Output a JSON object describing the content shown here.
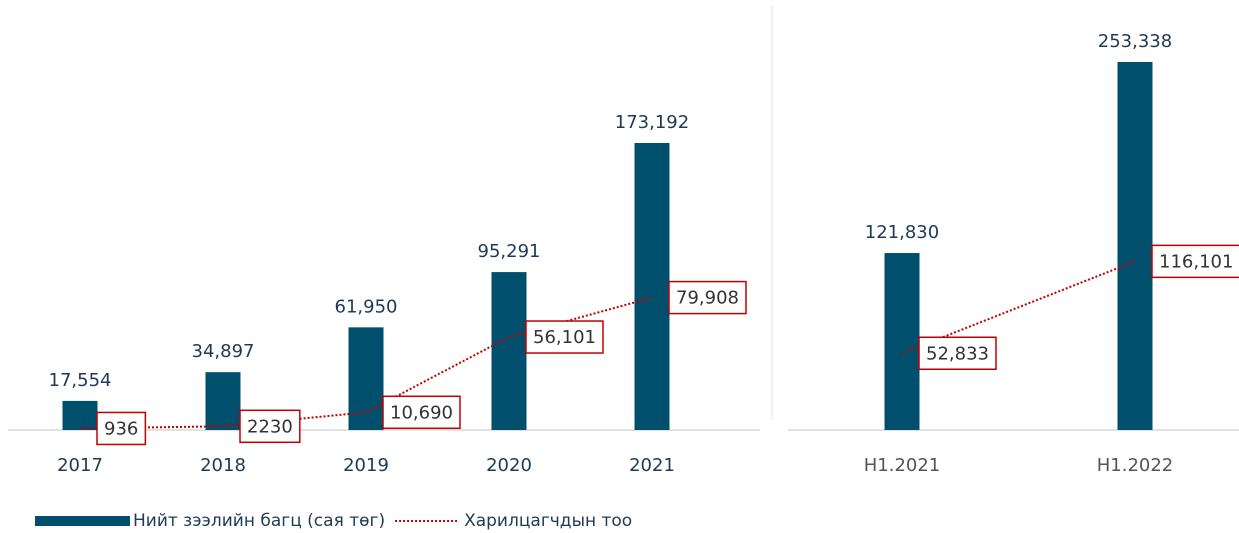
{
  "chart_data": [
    {
      "type": "bar",
      "categories": [
        "2017",
        "2018",
        "2019",
        "2020",
        "2021"
      ],
      "series": [
        {
          "name": "Нийт зээлийн багц (сая төг)",
          "type": "bar",
          "color": "#004f6d",
          "values": [
            17554,
            34897,
            61950,
            95291,
            173192
          ],
          "value_labels": [
            "17,554",
            "34,897",
            "61,950",
            "95,291",
            "173,192"
          ]
        },
        {
          "name": "Харилцагчдын тоо",
          "type": "line",
          "color": "#c00000",
          "values": [
            936,
            2230,
            10690,
            56101,
            79908
          ],
          "value_labels": [
            "936",
            "2230",
            "10,690",
            "56,101",
            "79,908"
          ]
        }
      ]
    },
    {
      "type": "bar",
      "categories": [
        "H1.2021",
        "H1.2022"
      ],
      "series": [
        {
          "type": "bar",
          "color": "#004f6d",
          "values": [
            121830,
            253338
          ],
          "value_labels": [
            "121,830",
            "253,338"
          ]
        },
        {
          "type": "line",
          "color": "#c00000",
          "values": [
            52833,
            116101
          ],
          "value_labels": [
            "52,833",
            "116,101"
          ]
        }
      ]
    }
  ]
}
